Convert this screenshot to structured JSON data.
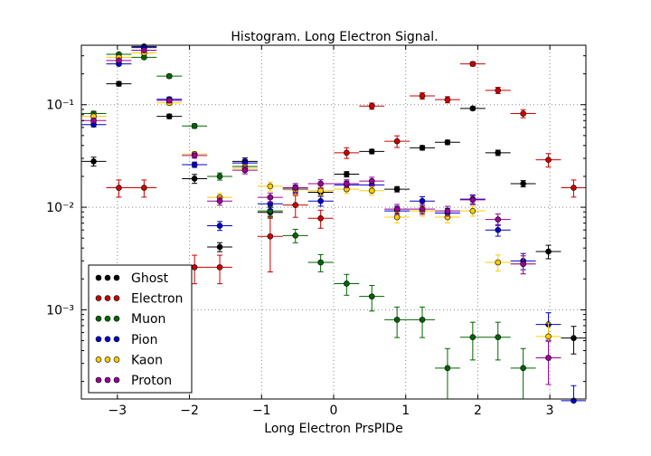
{
  "chart_data": {
    "type": "scatter",
    "title": "Histogram. Long Electron Signal.",
    "xlabel": "Long Electron PrsPIDe",
    "ylabel": "",
    "xlim": [
      -3.5,
      3.5
    ],
    "ylim_log10": [
      -3.87,
      -0.42
    ],
    "yscale": "log",
    "grid": true,
    "legend_position": "lower-left",
    "x_ticks": [
      -3,
      -2,
      -1,
      0,
      1,
      2,
      3
    ],
    "x_tick_labels": [
      "−3",
      "−2",
      "−1",
      "0",
      "1",
      "2",
      "3"
    ],
    "y_ticks": [
      0.001,
      0.01,
      0.1
    ],
    "y_tick_labels": [
      "10⁻³",
      "10⁻²",
      "10⁻¹"
    ],
    "bin_half_width": 0.175,
    "series": [
      {
        "name": "Ghost",
        "color": "#000000",
        "x": [
          -3.33,
          -2.98,
          -2.63,
          -2.28,
          -1.93,
          -1.58,
          -1.23,
          -0.88,
          -0.53,
          -0.18,
          0.18,
          0.53,
          0.88,
          1.23,
          1.58,
          1.93,
          2.28,
          2.63,
          2.98,
          3.33
        ],
        "y": [
          0.028,
          0.16,
          0.37,
          0.077,
          0.019,
          0.0041,
          0.028,
          0.0089,
          0.015,
          0.014,
          0.021,
          0.035,
          0.015,
          0.038,
          0.043,
          0.092,
          0.034,
          0.017,
          0.0037,
          0.00053
        ],
        "err": [
          0.1,
          0.05,
          0.05,
          0.05,
          0.1,
          0.1,
          0.08,
          0.12,
          0.08,
          0.08,
          0.06,
          0.05,
          0.06,
          0.05,
          0.05,
          0.04,
          0.06,
          0.07,
          0.15,
          0.3
        ]
      },
      {
        "name": "Electron",
        "color": "#cc0000",
        "x": [
          -2.98,
          -2.63,
          -1.93,
          -1.58,
          -0.88,
          -0.53,
          -0.18,
          0.18,
          0.53,
          0.88,
          1.23,
          1.58,
          1.93,
          2.28,
          2.63,
          2.98,
          3.33
        ],
        "y": [
          0.0155,
          0.0155,
          0.0026,
          0.0026,
          0.0052,
          0.0105,
          0.0078,
          0.034,
          0.097,
          0.044,
          0.122,
          0.112,
          0.25,
          0.138,
          0.082,
          0.029,
          0.0155
        ],
        "err": [
          0.19,
          0.19,
          0.31,
          0.31,
          0.55,
          0.24,
          0.2,
          0.12,
          0.07,
          0.13,
          0.07,
          0.07,
          0.045,
          0.07,
          0.09,
          0.15,
          0.19
        ]
      },
      {
        "name": "Muon",
        "color": "#006600",
        "x": [
          -3.33,
          -2.98,
          -2.63,
          -2.28,
          -1.93,
          -1.58,
          -1.23,
          -0.88,
          -0.53,
          -0.18,
          0.18,
          0.53,
          0.88,
          1.23,
          1.58,
          1.93,
          2.28,
          2.63
        ],
        "y": [
          0.082,
          0.31,
          0.29,
          0.19,
          0.062,
          0.02,
          0.025,
          0.0092,
          0.0053,
          0.0029,
          0.0018,
          0.00135,
          0.0008,
          0.0008,
          0.00027,
          0.00054,
          0.00054,
          0.00027
        ],
        "err": [
          0.05,
          0.03,
          0.03,
          0.04,
          0.05,
          0.08,
          0.08,
          0.11,
          0.15,
          0.19,
          0.23,
          0.28,
          0.33,
          0.33,
          0.55,
          0.4,
          0.4,
          0.55
        ]
      },
      {
        "name": "Pion",
        "color": "#0000cc",
        "x": [
          -3.33,
          -2.98,
          -2.63,
          -2.28,
          -1.93,
          -1.58,
          -1.23,
          -0.88,
          -0.53,
          -0.18,
          0.18,
          0.53,
          0.88,
          1.23,
          1.58,
          1.93,
          2.28,
          2.63,
          2.98,
          3.33
        ],
        "y": [
          0.064,
          0.25,
          0.36,
          0.113,
          0.026,
          0.0066,
          0.027,
          0.0108,
          0.015,
          0.0115,
          0.0165,
          0.0165,
          0.0092,
          0.0115,
          0.0088,
          0.012,
          0.006,
          0.003,
          0.00072,
          0.00013
        ],
        "err": [
          0.05,
          0.03,
          0.03,
          0.05,
          0.06,
          0.1,
          0.08,
          0.12,
          0.1,
          0.11,
          0.09,
          0.09,
          0.11,
          0.1,
          0.11,
          0.1,
          0.13,
          0.18,
          0.3,
          0.4
        ]
      },
      {
        "name": "Kaon",
        "color": "#ffcc00",
        "x": [
          -3.33,
          -2.98,
          -2.63,
          -2.28,
          -1.93,
          -1.58,
          -1.23,
          -0.88,
          -0.53,
          -0.18,
          0.18,
          0.53,
          0.88,
          1.23,
          1.58,
          1.93,
          2.28,
          2.63,
          2.98
        ],
        "y": [
          0.077,
          0.29,
          0.32,
          0.104,
          0.033,
          0.0125,
          0.024,
          0.016,
          0.0148,
          0.0145,
          0.015,
          0.0145,
          0.008,
          0.0092,
          0.008,
          0.0092,
          0.0029,
          0.0028,
          0.00055
        ],
        "err": [
          0.05,
          0.03,
          0.03,
          0.05,
          0.06,
          0.09,
          0.08,
          0.1,
          0.1,
          0.1,
          0.09,
          0.09,
          0.12,
          0.11,
          0.12,
          0.11,
          0.18,
          0.2,
          0.35
        ]
      },
      {
        "name": "Proton",
        "color": "#990099",
        "x": [
          -3.33,
          -2.98,
          -2.63,
          -2.28,
          -1.93,
          -1.58,
          -1.23,
          -0.88,
          -0.53,
          -0.18,
          0.18,
          0.53,
          0.88,
          1.23,
          1.58,
          1.93,
          2.28,
          2.63,
          2.98
        ],
        "y": [
          0.07,
          0.27,
          0.34,
          0.11,
          0.032,
          0.0115,
          0.023,
          0.0125,
          0.0155,
          0.017,
          0.017,
          0.018,
          0.0096,
          0.0096,
          0.0092,
          0.0118,
          0.0076,
          0.0028,
          0.00034
        ],
        "err": [
          0.05,
          0.03,
          0.03,
          0.05,
          0.06,
          0.09,
          0.08,
          0.1,
          0.1,
          0.09,
          0.09,
          0.09,
          0.11,
          0.11,
          0.11,
          0.1,
          0.13,
          0.2,
          0.45
        ]
      }
    ]
  }
}
